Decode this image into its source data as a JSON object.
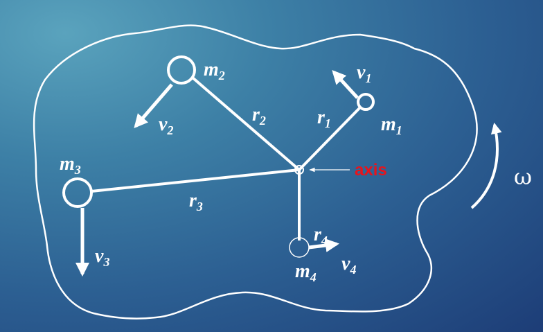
{
  "diagram": {
    "axis_label": "axis",
    "omega_label": "ω",
    "masses": [
      {
        "id": "m1",
        "name": "m",
        "sub": "1"
      },
      {
        "id": "m2",
        "name": "m",
        "sub": "2"
      },
      {
        "id": "m3",
        "name": "m",
        "sub": "3"
      },
      {
        "id": "m4",
        "name": "m",
        "sub": "4"
      }
    ],
    "radii": [
      {
        "id": "r1",
        "name": "r",
        "sub": "1"
      },
      {
        "id": "r2",
        "name": "r",
        "sub": "2"
      },
      {
        "id": "r3",
        "name": "r",
        "sub": "3"
      },
      {
        "id": "r4",
        "name": "r",
        "sub": "4"
      }
    ],
    "velocities": [
      {
        "id": "v1",
        "name": "v",
        "sub": "1"
      },
      {
        "id": "v2",
        "name": "v",
        "sub": "2"
      },
      {
        "id": "v3",
        "name": "v",
        "sub": "3"
      },
      {
        "id": "v4",
        "name": "v",
        "sub": "4"
      }
    ],
    "colors": {
      "ink": "#ffffff",
      "axis_label": "#e8141c",
      "background_light": "#5aa3bd",
      "background_dark": "#1d3d77"
    }
  }
}
